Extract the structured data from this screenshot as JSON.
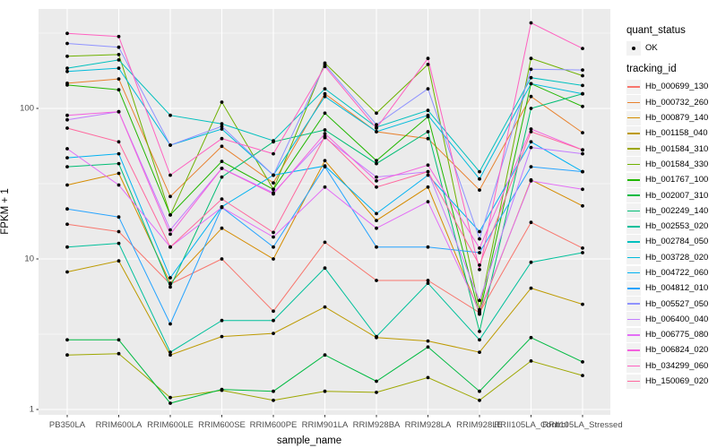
{
  "figure": {
    "y_axis": {
      "label": "FPKM + 1",
      "scale": "log10",
      "tick_labels": [
        "1",
        "10",
        "100"
      ]
    },
    "x_axis": {
      "label": "sample_name"
    },
    "legend": {
      "quant_status_title": "quant_status",
      "ok_label": "OK",
      "tracking_title": "tracking_id"
    },
    "colors": {
      "panel_background": "#EBEBEB",
      "gridline": "#FFFFFF",
      "point": "#000000",
      "tick_text": "#4D4D4D",
      "tick_mark": "#333333",
      "legend_key_background": "#F2F2F2"
    }
  },
  "chart_data": {
    "type": "line",
    "title": "",
    "xlabel": "sample_name",
    "ylabel": "FPKM + 1",
    "y_scale": "log10",
    "ylim": [
      0.9,
      450
    ],
    "y_ticks": [
      1,
      10,
      100
    ],
    "grid": true,
    "legend_position": "right",
    "point_marker": "black dot (quant_status OK)",
    "categories": [
      "PB350LA",
      "RRIM600LA",
      "RRIM600LE",
      "RRIM600SE",
      "RRIM600PE",
      "RRIM901LA",
      "RRIM928BA",
      "RRIM928LA",
      "RRIM928LE",
      "RRII105LA_Control",
      "RRII105LA_Stressed"
    ],
    "series": [
      {
        "name": "Hb_000699_130",
        "color": "#F8766D",
        "values": [
          17,
          15.2,
          6.8,
          10,
          4.5,
          12.9,
          7.2,
          7.2,
          4.4,
          17.5,
          11.8
        ]
      },
      {
        "name": "Hb_000732_260",
        "color": "#E8812D",
        "values": [
          147,
          157,
          26,
          56,
          32,
          125,
          70,
          63,
          28.7,
          120,
          69
        ]
      },
      {
        "name": "Hb_000879_140",
        "color": "#D58C00",
        "values": [
          31,
          37,
          6.9,
          16,
          10,
          45,
          18,
          30,
          4.4,
          33.5,
          22.5
        ]
      },
      {
        "name": "Hb_001158_040",
        "color": "#BD9A00",
        "values": [
          8.2,
          9.7,
          2.3,
          3.05,
          3.2,
          4.8,
          3.0,
          2.85,
          2.4,
          6.4,
          5.0
        ]
      },
      {
        "name": "Hb_001584_310",
        "color": "#9DA700",
        "values": [
          2.3,
          2.35,
          1.2,
          1.34,
          1.15,
          1.32,
          1.3,
          1.63,
          1.15,
          2.1,
          1.68
        ]
      },
      {
        "name": "Hb_001584_330",
        "color": "#6EB100",
        "values": [
          222,
          228,
          19.6,
          110,
          29,
          200,
          93,
          196,
          4.6,
          215,
          165
        ]
      },
      {
        "name": "Hb_001767_100",
        "color": "#21B700",
        "values": [
          143,
          133,
          19.6,
          44.5,
          29,
          93,
          45,
          88,
          4.3,
          146,
          103
        ]
      },
      {
        "name": "Hb_002007_310",
        "color": "#00BA42",
        "values": [
          2.9,
          2.9,
          1.1,
          1.36,
          1.32,
          2.3,
          1.54,
          2.6,
          1.32,
          3.0,
          2.07
        ]
      },
      {
        "name": "Hb_002249_140",
        "color": "#00BD74",
        "values": [
          41,
          43,
          6.5,
          35,
          60,
          72,
          43,
          70,
          3.3,
          100,
          125
        ]
      },
      {
        "name": "Hb_002553_020",
        "color": "#00C09B",
        "values": [
          12,
          12.7,
          2.4,
          3.9,
          3.9,
          8.7,
          3.05,
          6.9,
          2.9,
          9.5,
          11
        ]
      },
      {
        "name": "Hb_002784_050",
        "color": "#00C0BE",
        "values": [
          185,
          210,
          90,
          79,
          61,
          135,
          75,
          97,
          38,
          160,
          142
        ]
      },
      {
        "name": "Hb_003728_020",
        "color": "#00BBDB",
        "values": [
          176,
          185,
          57,
          73,
          36,
          120,
          70,
          90,
          34,
          146,
          125
        ]
      },
      {
        "name": "Hb_004722_060",
        "color": "#00B2F2",
        "values": [
          47,
          50,
          7.5,
          22.2,
          36,
          41.5,
          20,
          36,
          15.2,
          60,
          38
        ]
      },
      {
        "name": "Hb_004812_010",
        "color": "#27A4FF",
        "values": [
          21.5,
          19,
          3.7,
          22,
          12,
          41,
          12,
          12,
          11,
          41,
          38
        ]
      },
      {
        "name": "Hb_005527_050",
        "color": "#8F93FF",
        "values": [
          270,
          255,
          57,
          76,
          36,
          195,
          78,
          135,
          13.6,
          182,
          180
        ]
      },
      {
        "name": "Hb_006400_040",
        "color": "#C37CFF",
        "values": [
          84,
          95,
          15.6,
          40,
          27.5,
          64,
          35,
          38,
          5.3,
          55,
          50
        ]
      },
      {
        "name": "Hb_006775_080",
        "color": "#E36EF6",
        "values": [
          54,
          31,
          12,
          22,
          14,
          30,
          16,
          24,
          4.5,
          33,
          29
        ]
      },
      {
        "name": "Hb_006824_020",
        "color": "#F462DE",
        "values": [
          90,
          95,
          14.6,
          40,
          27,
          68,
          33,
          42,
          11.8,
          73,
          53
        ]
      },
      {
        "name": "Hb_034299_060",
        "color": "#FF61C0",
        "values": [
          315,
          300,
          36,
          63,
          50,
          190,
          74,
          215,
          8.5,
          370,
          250
        ]
      },
      {
        "name": "Hb_150069_020",
        "color": "#FF689E",
        "values": [
          74,
          60,
          12,
          25,
          15,
          65,
          30,
          38,
          9.1,
          70,
          53
        ]
      }
    ]
  }
}
